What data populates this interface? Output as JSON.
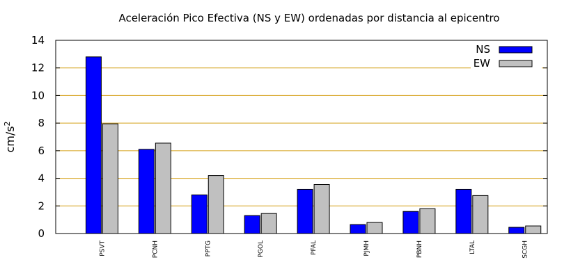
{
  "chart_data": {
    "type": "bar",
    "title": "Aceleración Pico Efectiva (NS y EW) ordenadas por distancia al epicentro",
    "xlabel": "",
    "ylabel": "cm/s",
    "ylabel_superscript": "2",
    "ylim": [
      0,
      14
    ],
    "yticks": [
      "0",
      "2",
      "4",
      "6",
      "8",
      "10",
      "12",
      "14"
    ],
    "grid": "horizontal",
    "legend_position": "top-right",
    "categories": [
      "PSVT",
      "PCNH",
      "PPTG",
      "PGOL",
      "PFAL",
      "PJMH",
      "PBNH",
      "LTAL",
      "SCGH"
    ],
    "series": [
      {
        "name": "NS",
        "color": "#0000ff",
        "values": [
          12.8,
          6.1,
          2.8,
          1.3,
          3.2,
          0.65,
          1.6,
          3.2,
          0.45
        ]
      },
      {
        "name": "EW",
        "color": "#c0c0c0",
        "values": [
          7.95,
          6.55,
          4.2,
          1.45,
          3.55,
          0.8,
          1.8,
          2.75,
          0.55
        ]
      }
    ],
    "grid_color": "#d4a017"
  }
}
